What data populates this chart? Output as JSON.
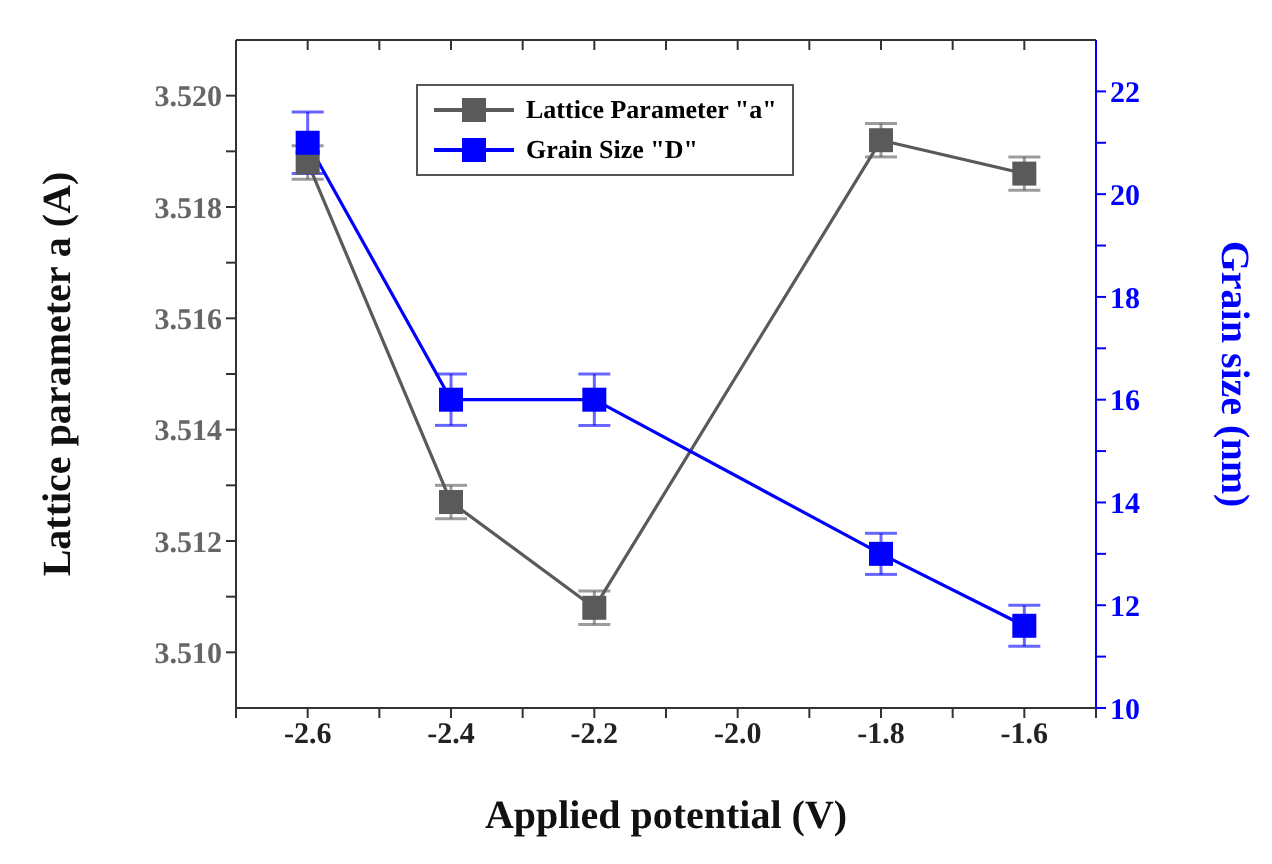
{
  "chart_data": {
    "type": "line",
    "xlabel": "Applied potential (V)",
    "ylabel": "Lattice parameter a (A)",
    "y2label": "Grain size (nm)",
    "x": [
      -2.6,
      -2.4,
      -2.2,
      -1.8,
      -1.6
    ],
    "series": [
      {
        "name": "Lattice Parameter \"a\"",
        "color": "#5a5a5a",
        "values": [
          3.5188,
          3.5127,
          3.5108,
          3.5192,
          3.5186
        ],
        "errors": [
          0.0003,
          0.0003,
          0.0003,
          0.0003,
          0.0003
        ]
      },
      {
        "name": "Grain Size \"D\"",
        "color": "#0000ff",
        "axis": "y2",
        "values": [
          21,
          16,
          16,
          13,
          11.6
        ],
        "errors": [
          0.6,
          0.5,
          0.5,
          0.4,
          0.4
        ]
      }
    ],
    "xlim": [
      -2.7,
      -1.5
    ],
    "xticks": [
      {
        "value": -2.7,
        "label": null
      },
      -2.6,
      {
        "value": -2.5,
        "label": null
      },
      -2.4,
      {
        "value": -2.3,
        "label": null
      },
      -2.2,
      {
        "value": -2.1,
        "label": null
      },
      {
        "value": -2.0,
        "label": "-2.0"
      },
      {
        "value": -1.9,
        "label": null
      },
      -1.8,
      {
        "value": -1.7,
        "label": null
      },
      -1.6,
      {
        "value": -1.5,
        "label": null
      }
    ],
    "ylim": [
      3.509,
      3.521
    ],
    "yticks": [
      {
        "value": 3.51,
        "label": "3.510"
      },
      {
        "value": 3.511,
        "label": null
      },
      {
        "value": 3.512,
        "label": "3.512"
      },
      {
        "value": 3.513,
        "label": null
      },
      {
        "value": 3.514,
        "label": "3.514"
      },
      {
        "value": 3.515,
        "label": null
      },
      {
        "value": 3.516,
        "label": "3.516"
      },
      {
        "value": 3.517,
        "label": null
      },
      {
        "value": 3.518,
        "label": "3.518"
      },
      {
        "value": 3.519,
        "label": null
      },
      {
        "value": 3.52,
        "label": "3.520"
      }
    ],
    "y2lim": [
      10,
      23
    ],
    "y2ticks": [
      10,
      {
        "value": 11,
        "label": null
      },
      12,
      {
        "value": 13,
        "label": null
      },
      14,
      {
        "value": 15,
        "label": null
      },
      16,
      {
        "value": 17,
        "label": null
      },
      18,
      {
        "value": 19,
        "label": null
      },
      20,
      {
        "value": 21,
        "label": null
      },
      22
    ],
    "marker": "square",
    "line_style": "solid",
    "grid": false,
    "legend": "top left"
  }
}
